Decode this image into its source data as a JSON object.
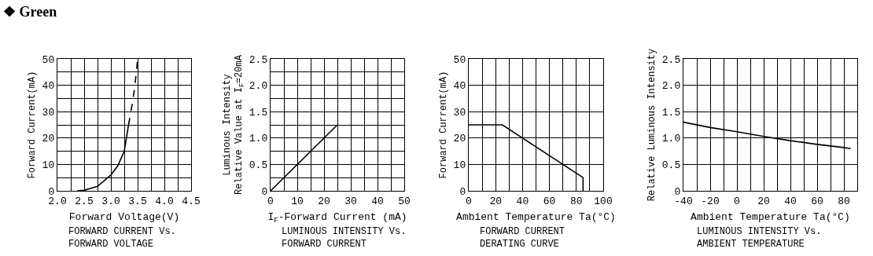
{
  "chart_data": [
    {
      "type": "other",
      "title": "❖ Green"
    },
    {
      "type": "line",
      "title": "FORWARD CURRENT Vs.\nFORWARD VOLTAGE",
      "xlabel": "Forward Voltage(V)",
      "ylabel": "Forward Current(mA)",
      "xlim": [
        2,
        4.5
      ],
      "ylim": [
        0,
        50
      ],
      "xticks": [
        {
          "value": 2,
          "label": "2.0"
        },
        {
          "value": 2.25,
          "label": null
        },
        {
          "value": 2.5,
          "label": "2.5"
        },
        {
          "value": 2.75,
          "label": null
        },
        {
          "value": 3,
          "label": "3.0"
        },
        {
          "value": 3.25,
          "label": null
        },
        {
          "value": 3.5,
          "label": "3.5"
        },
        {
          "value": 3.75,
          "label": null
        },
        {
          "value": 4,
          "label": "4.0"
        },
        {
          "value": 4.25,
          "label": null
        },
        {
          "value": 4.5,
          "label": "4.5"
        }
      ],
      "yticks": [
        0,
        {
          "value": 5,
          "label": null
        },
        10,
        {
          "value": 15,
          "label": null
        },
        20,
        {
          "value": 25,
          "label": null
        },
        30,
        {
          "value": 35,
          "label": null
        },
        40,
        {
          "value": 45,
          "label": null
        },
        50
      ],
      "grid": true,
      "series": [
        {
          "color": "#000000",
          "line_style": "solid",
          "x": [
            2.37,
            2.5,
            2.75,
            3.0,
            3.13,
            3.25,
            3.33
          ],
          "values": [
            0,
            0.2,
            1.7,
            6,
            9.5,
            15,
            25
          ]
        },
        {
          "color": "#000000",
          "line_style": "dashed",
          "x": [
            3.33,
            3.4,
            3.45,
            3.5
          ],
          "values": [
            25,
            33,
            40,
            50
          ]
        }
      ]
    },
    {
      "type": "line",
      "title": "LUMINOUS INTENSITY Vs.\nFORWARD CURRENT",
      "xlabel": "I$_{F}$-Forward Current (mA)",
      "ylabel": "Luminous Intensity\nRelative Value at I$_{F}$=20mA",
      "xlim": [
        0,
        50
      ],
      "ylim": [
        0,
        2.5
      ],
      "xticks": [
        0,
        {
          "value": 5,
          "label": null
        },
        10,
        {
          "value": 15,
          "label": null
        },
        20,
        {
          "value": 25,
          "label": null
        },
        30,
        {
          "value": 35,
          "label": null
        },
        40,
        {
          "value": 45,
          "label": null
        },
        50
      ],
      "yticks": [
        0,
        {
          "value": 0.25,
          "label": null
        },
        0.5,
        {
          "value": 0.75,
          "label": null
        },
        {
          "value": 1,
          "label": "1.0"
        },
        {
          "value": 1.25,
          "label": null
        },
        1.5,
        {
          "value": 1.75,
          "label": null
        },
        {
          "value": 2,
          "label": "2.0"
        },
        {
          "value": 2.25,
          "label": null
        },
        2.5
      ],
      "grid": true,
      "series": [
        {
          "color": "#000000",
          "x": [
            0,
            25
          ],
          "values": [
            0,
            1.25
          ]
        }
      ]
    },
    {
      "type": "line",
      "title": "FORWARD CURRENT\nDERATING CURVE",
      "xlabel": "Ambient Temperature Ta(°C)",
      "ylabel": "Forward Current(mA)",
      "xlim": [
        0,
        100
      ],
      "ylim": [
        0,
        50
      ],
      "xticks": [
        0,
        {
          "value": 10,
          "label": null
        },
        20,
        {
          "value": 30,
          "label": null
        },
        40,
        {
          "value": 50,
          "label": null
        },
        60,
        {
          "value": 70,
          "label": null
        },
        80,
        {
          "value": 90,
          "label": null
        },
        100
      ],
      "yticks": [
        0,
        10,
        20,
        30,
        40,
        50
      ],
      "grid": true,
      "series": [
        {
          "color": "#000000",
          "x": [
            0,
            25,
            85,
            85
          ],
          "values": [
            25,
            25,
            5,
            0
          ]
        }
      ]
    },
    {
      "type": "line",
      "title": "LUMINOUS INTENSITY Vs.\nAMBIENT TEMPERATURE",
      "xlabel": "Ambient Temperature Ta(°C)",
      "ylabel": "Relative Luminous Intensity",
      "xlim": [
        -40,
        90
      ],
      "ylim": [
        0,
        2.5
      ],
      "xticks": [
        -40,
        {
          "value": -30,
          "label": null
        },
        -20,
        {
          "value": -10,
          "label": null
        },
        0,
        {
          "value": 10,
          "label": null
        },
        20,
        {
          "value": 30,
          "label": null
        },
        40,
        {
          "value": 50,
          "label": null
        },
        60,
        {
          "value": 70,
          "label": null
        },
        80
      ],
      "yticks": [
        0,
        0.5,
        {
          "value": 1,
          "label": "1.0"
        },
        1.5,
        {
          "value": 2,
          "label": "2.0"
        },
        2.5
      ],
      "grid": true,
      "series": [
        {
          "color": "#000000",
          "x": [
            -40,
            -20,
            0,
            20,
            40,
            60,
            80,
            85
          ],
          "values": [
            1.3,
            1.2,
            1.12,
            1.03,
            0.95,
            0.88,
            0.82,
            0.8
          ]
        }
      ]
    }
  ]
}
